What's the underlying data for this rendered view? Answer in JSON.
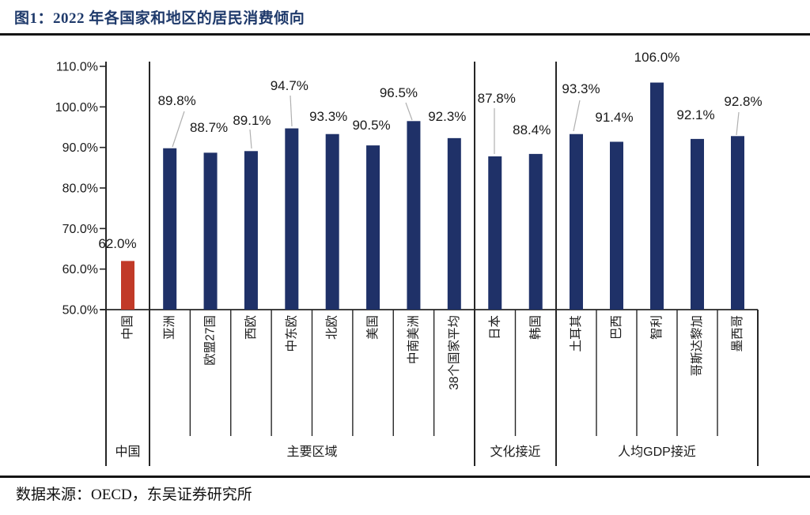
{
  "header": {
    "title": "图1：2022 年各国家和地区的居民消费倾向"
  },
  "footer": {
    "source": "数据来源：OECD，东吴证券研究所"
  },
  "chart_data": {
    "type": "bar",
    "title": "2022 年各国家和地区的居民消费倾向",
    "xlabel": "",
    "ylabel": "",
    "unit": "%",
    "ylim": [
      50,
      110
    ],
    "ytick_labels": [
      "110.0%",
      "100.0%",
      "90.0%",
      "80.0%",
      "70.0%",
      "60.0%",
      "50.0%"
    ],
    "grid": false,
    "legend": "none",
    "colors": {
      "bar": "#1F3168",
      "highlight": "#C13A28",
      "leader_line": "#B0B0B0",
      "axis": "#262626",
      "label_text": "#141414"
    },
    "groups": [
      {
        "label": "中国",
        "items": [
          {
            "name": "中国",
            "value": 62.0,
            "data_label": "62.0%",
            "highlight": true,
            "label_dx": -13,
            "label_y": 308,
            "leader": null
          }
        ]
      },
      {
        "label": "主要区域",
        "items": [
          {
            "name": "亚洲",
            "value": 89.8,
            "data_label": "89.8%",
            "highlight": false,
            "label_dx": 9,
            "label_y": 127,
            "leader": [
              233,
              141,
              218,
              186
            ]
          },
          {
            "name": "欧盟27国",
            "value": 88.7,
            "data_label": "88.7%",
            "highlight": false,
            "label_dx": -2,
            "label_y": 161,
            "leader": null
          },
          {
            "name": "西欧",
            "value": 89.1,
            "data_label": "89.1%",
            "highlight": false,
            "label_dx": 1,
            "label_y": 152,
            "leader": [
              316,
              164,
              318,
              188
            ]
          },
          {
            "name": "中东欧",
            "value": 94.7,
            "data_label": "94.7%",
            "highlight": false,
            "label_dx": -3,
            "label_y": 108,
            "leader": [
              367,
              121,
              369,
              160
            ]
          },
          {
            "name": "北欧",
            "value": 93.3,
            "data_label": "93.3%",
            "highlight": false,
            "label_dx": -5,
            "label_y": 147,
            "leader": null
          },
          {
            "name": "美国",
            "value": 90.5,
            "data_label": "90.5%",
            "highlight": false,
            "label_dx": -2,
            "label_y": 158,
            "leader": null
          },
          {
            "name": "中南美洲",
            "value": 96.5,
            "data_label": "96.5%",
            "highlight": false,
            "label_dx": -19,
            "label_y": 117,
            "leader": [
              513,
              130,
              521,
              152
            ]
          },
          {
            "name": "38个国家平均",
            "value": 92.3,
            "data_label": "92.3%",
            "highlight": false,
            "label_dx": -9,
            "label_y": 147,
            "leader": null
          }
        ]
      },
      {
        "label": "文化接近",
        "items": [
          {
            "name": "日本",
            "value": 87.8,
            "data_label": "87.8%",
            "highlight": false,
            "label_dx": 2,
            "label_y": 124,
            "leader": [
              625,
              137,
              625,
              195
            ]
          },
          {
            "name": "韩国",
            "value": 88.4,
            "data_label": "88.4%",
            "highlight": false,
            "label_dx": -5,
            "label_y": 164,
            "leader": null
          }
        ]
      },
      {
        "label": "人均GDP接近",
        "items": [
          {
            "name": "土耳其",
            "value": 93.3,
            "data_label": "93.3%",
            "highlight": false,
            "label_dx": 6,
            "label_y": 112,
            "leader": [
              733,
              127,
              725,
              166
            ]
          },
          {
            "name": "巴西",
            "value": 91.4,
            "data_label": "91.4%",
            "highlight": false,
            "label_dx": -3,
            "label_y": 148,
            "leader": null
          },
          {
            "name": "智利",
            "value": 106.0,
            "data_label": "106.0%",
            "highlight": false,
            "label_dx": 0,
            "label_y": 72,
            "leader": null
          },
          {
            "name": "哥斯达黎加",
            "value": 92.1,
            "data_label": "92.1%",
            "highlight": false,
            "label_dx": -2,
            "label_y": 145,
            "leader": null
          },
          {
            "name": "墨西哥",
            "value": 92.8,
            "data_label": "92.8%",
            "highlight": false,
            "label_dx": 7,
            "label_y": 128,
            "leader": [
              934,
              142,
              931,
              171
            ]
          }
        ]
      }
    ]
  }
}
